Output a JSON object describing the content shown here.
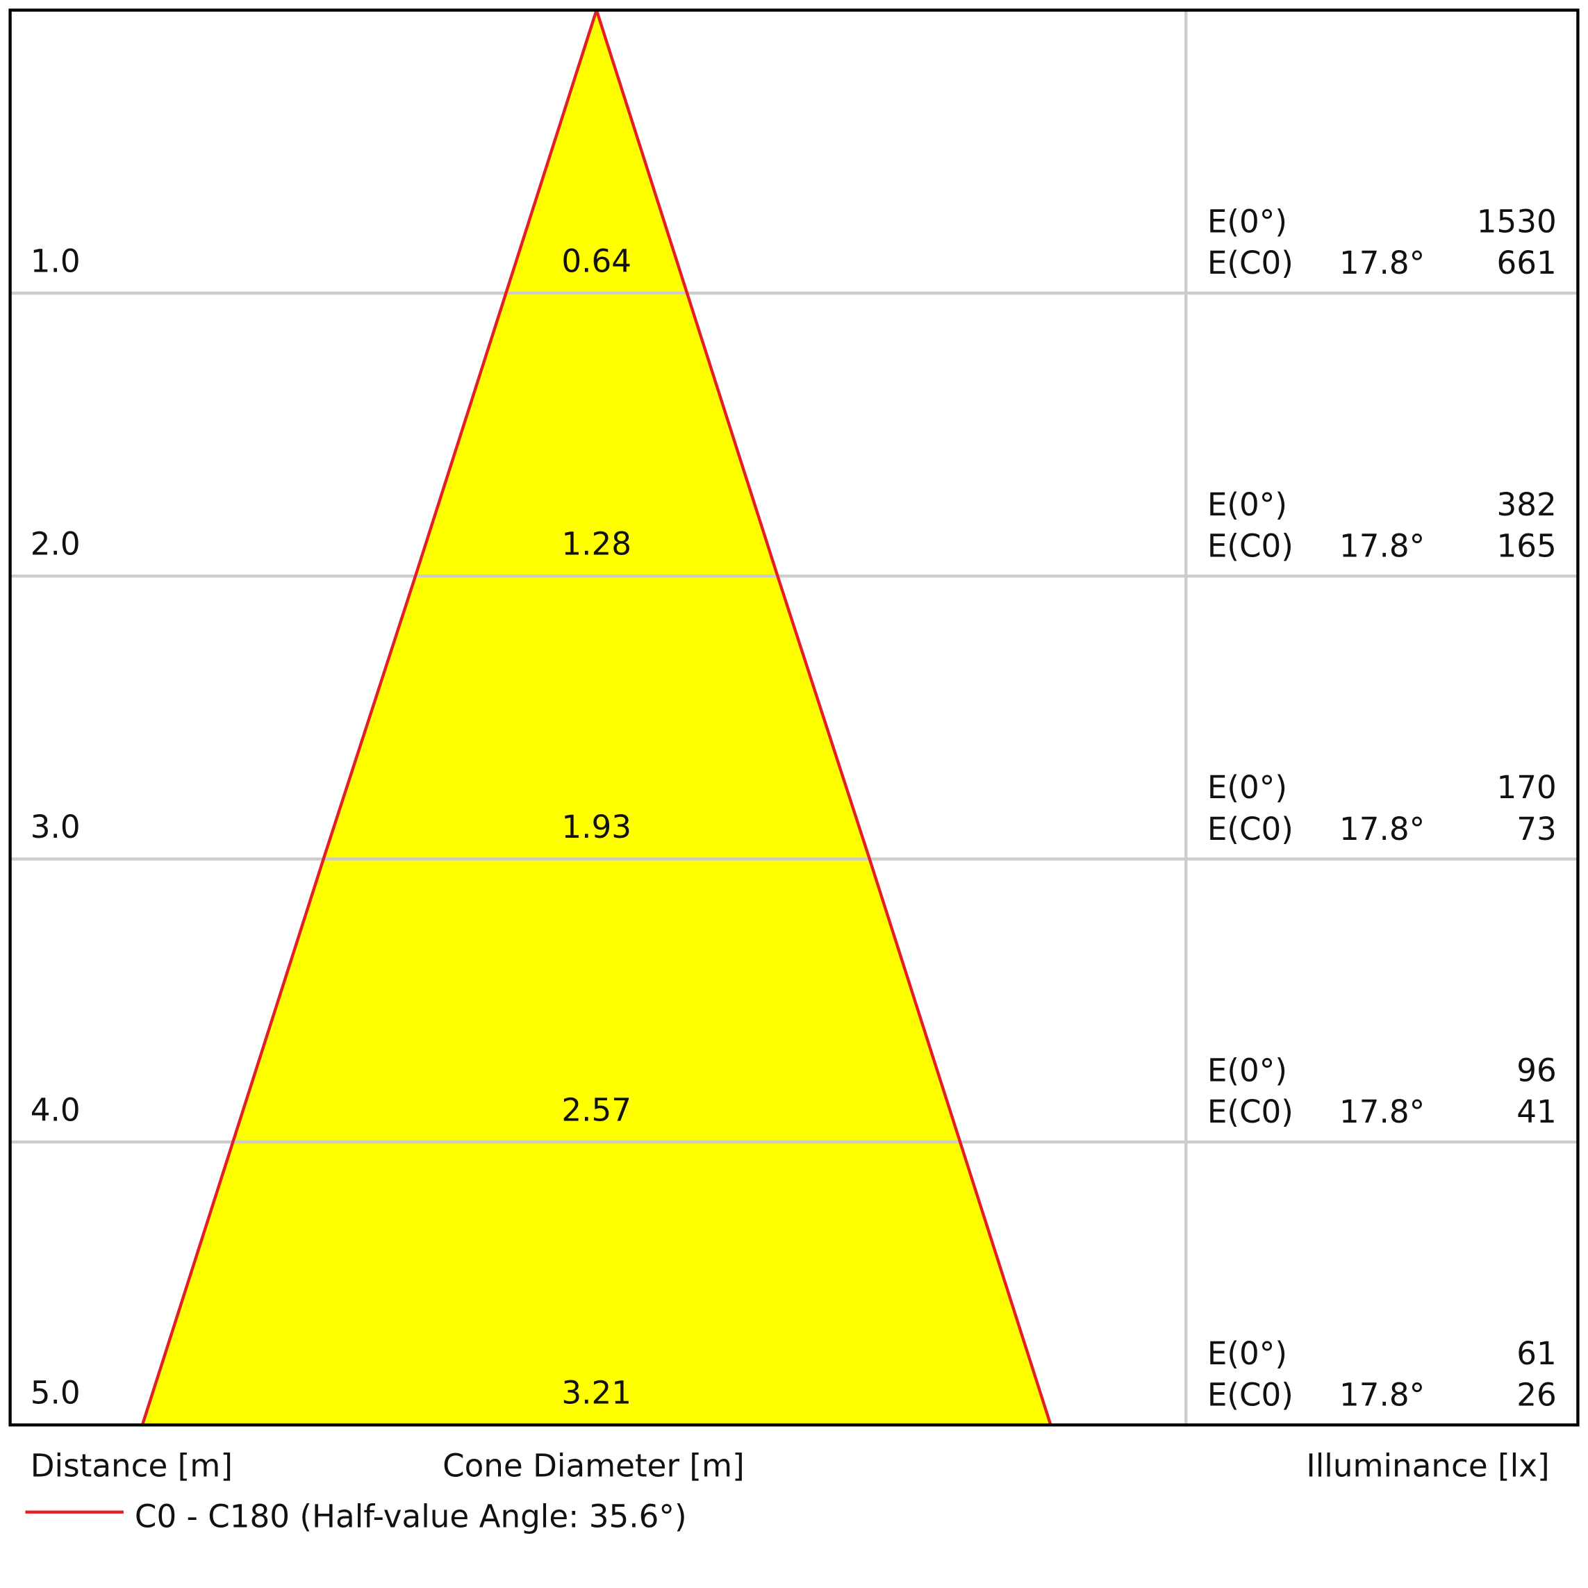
{
  "chart_data": {
    "type": "cone",
    "rows": [
      {
        "distance": {
          "value": 1,
          "label": "1.0"
        },
        "diameter": 0.64,
        "e0": 1530,
        "angle": "17.8°",
        "ec0": 661
      },
      {
        "distance": {
          "value": 2,
          "label": "2.0"
        },
        "diameter": 1.28,
        "e0": 382,
        "angle": "17.8°",
        "ec0": 165
      },
      {
        "distance": {
          "value": 3,
          "label": "3.0"
        },
        "diameter": 1.93,
        "e0": 170,
        "angle": "17.8°",
        "ec0": 73
      },
      {
        "distance": {
          "value": 4,
          "label": "4.0"
        },
        "diameter": 2.57,
        "e0": 96,
        "angle": "17.8°",
        "ec0": 41
      },
      {
        "distance": {
          "value": 5,
          "label": "5.0"
        },
        "diameter": 3.21,
        "e0": 61,
        "angle": "17.8°",
        "ec0": 26
      }
    ],
    "e0_label": "E(0°)",
    "ec0_label": "E(C0)",
    "distance_label": "Distance [m]",
    "diameter_label": "Cone Diameter [m]",
    "illuminance_label": "Illuminance [lx]",
    "series": [
      {
        "name": "C0 - C180 (Half-value Angle: 35.6°)",
        "color": "#e31e24"
      }
    ],
    "fill_color": "#ffff00"
  }
}
